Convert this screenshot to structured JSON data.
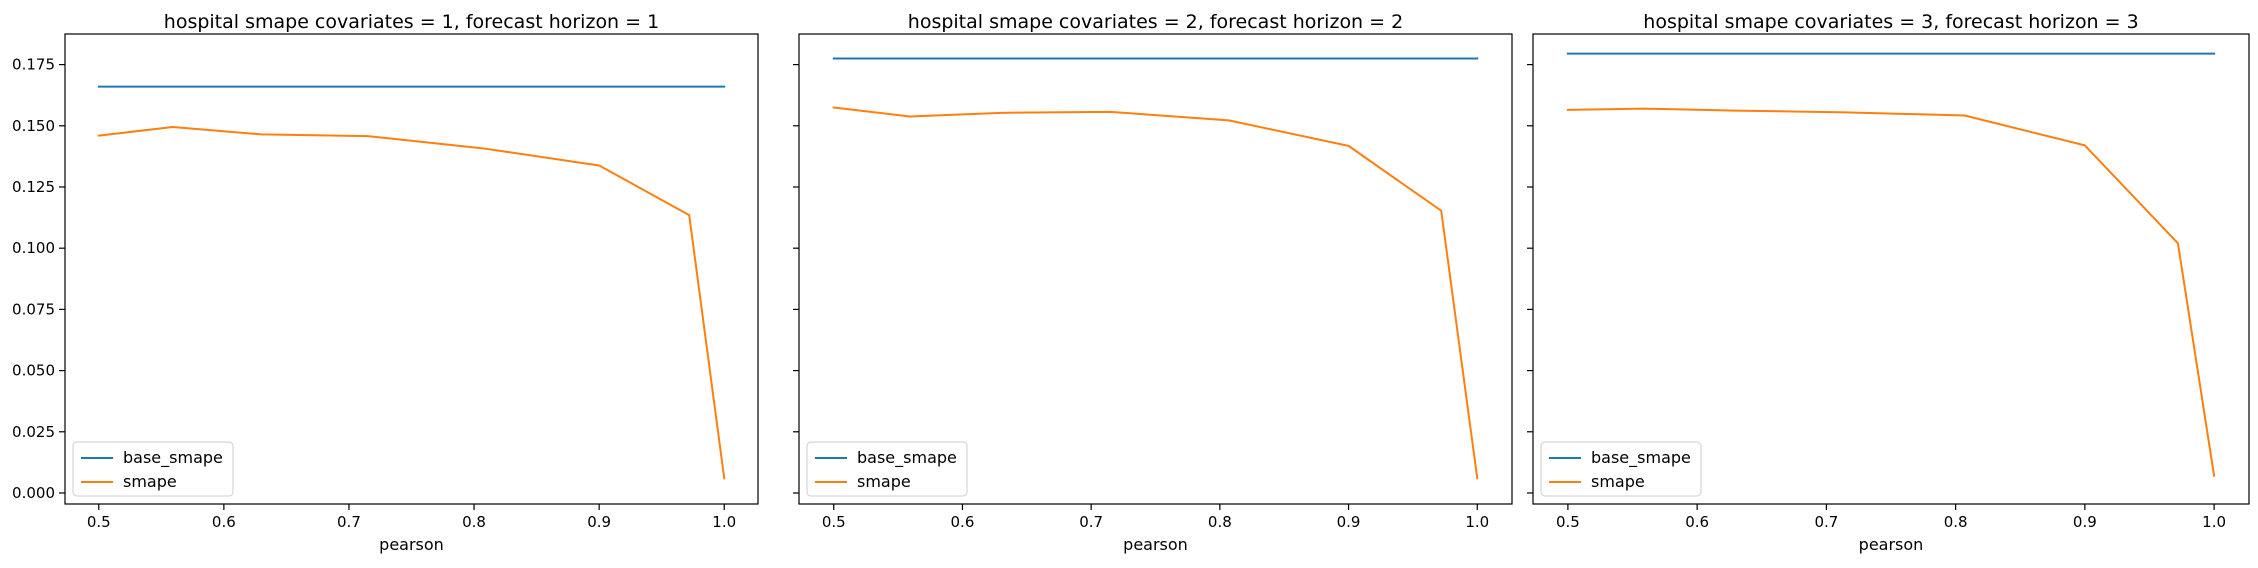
{
  "chart_data": [
    {
      "type": "line",
      "title": "hospital smape covariates = 1, forecast horizon = 1",
      "xlabel": "pearson",
      "ylabel": "",
      "xlim": [
        0.473,
        1.027
      ],
      "ylim": [
        -0.0045,
        0.1875
      ],
      "xticks": [
        "0.5",
        "0.6",
        "0.7",
        "0.8",
        "0.9",
        "1.0"
      ],
      "yticks": [
        "0.000",
        "0.025",
        "0.050",
        "0.075",
        "0.100",
        "0.125",
        "0.150",
        "0.175"
      ],
      "legend_position": "lower-left",
      "series": [
        {
          "name": "base_smape",
          "color": "#1f77b4",
          "x": [
            0.5,
            1.0
          ],
          "y": [
            0.166,
            0.166
          ]
        },
        {
          "name": "smape",
          "color": "#ff7f0e",
          "x": [
            0.5,
            0.559,
            0.63,
            0.715,
            0.807,
            0.9,
            0.972,
            1.0
          ],
          "y": [
            0.146,
            0.1495,
            0.1465,
            0.1458,
            0.1408,
            0.1338,
            0.1135,
            0.006
          ]
        }
      ]
    },
    {
      "type": "line",
      "title": "hospital smape covariates = 2, forecast horizon = 2",
      "xlabel": "pearson",
      "ylabel": "",
      "xlim": [
        0.473,
        1.027
      ],
      "ylim": [
        -0.0045,
        0.1875
      ],
      "xticks": [
        "0.5",
        "0.6",
        "0.7",
        "0.8",
        "0.9",
        "1.0"
      ],
      "yticks": [
        "0.000",
        "0.025",
        "0.050",
        "0.075",
        "0.100",
        "0.125",
        "0.150",
        "0.175"
      ],
      "legend_position": "lower-left",
      "series": [
        {
          "name": "base_smape",
          "color": "#1f77b4",
          "x": [
            0.5,
            1.0
          ],
          "y": [
            0.1775,
            0.1775
          ]
        },
        {
          "name": "smape",
          "color": "#ff7f0e",
          "x": [
            0.5,
            0.559,
            0.63,
            0.715,
            0.807,
            0.9,
            0.972,
            1.0
          ],
          "y": [
            0.1575,
            0.1538,
            0.1553,
            0.1557,
            0.1522,
            0.1418,
            0.1153,
            0.006
          ]
        }
      ]
    },
    {
      "type": "line",
      "title": "hospital smape covariates = 3, forecast horizon = 3",
      "xlabel": "pearson",
      "ylabel": "",
      "xlim": [
        0.473,
        1.027
      ],
      "ylim": [
        -0.0045,
        0.1875
      ],
      "xticks": [
        "0.5",
        "0.6",
        "0.7",
        "0.8",
        "0.9",
        "1.0"
      ],
      "yticks": [
        "0.000",
        "0.025",
        "0.050",
        "0.075",
        "0.100",
        "0.125",
        "0.150",
        "0.175"
      ],
      "legend_position": "lower-left",
      "series": [
        {
          "name": "base_smape",
          "color": "#1f77b4",
          "x": [
            0.5,
            1.0
          ],
          "y": [
            0.1795,
            0.1795
          ]
        },
        {
          "name": "smape",
          "color": "#ff7f0e",
          "x": [
            0.5,
            0.559,
            0.63,
            0.715,
            0.807,
            0.9,
            0.972,
            1.0
          ],
          "y": [
            0.1565,
            0.157,
            0.1562,
            0.1555,
            0.1542,
            0.142,
            0.102,
            0.007
          ]
        }
      ]
    }
  ]
}
